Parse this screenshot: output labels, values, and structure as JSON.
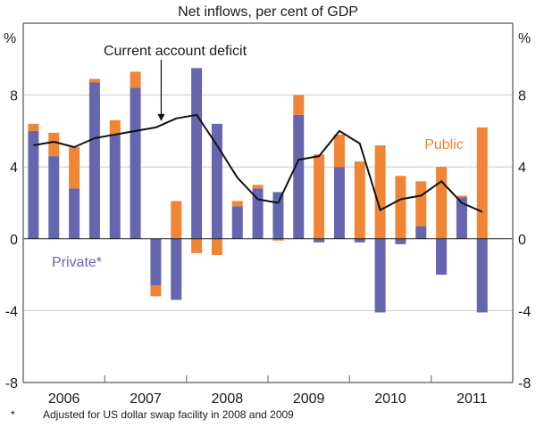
{
  "chart_data": {
    "type": "bar",
    "stacked": true,
    "title": "Net inflows, per cent of GDP",
    "ylabel_left": "%",
    "ylabel_right": "%",
    "ylim": [
      -8,
      12
    ],
    "yticks": [
      -8,
      -4,
      0,
      4,
      8
    ],
    "ytick_labels": [
      "-8",
      "-4",
      "0",
      "4",
      "8"
    ],
    "grid": true,
    "x_years": [
      "2006",
      "2007",
      "2008",
      "2009",
      "2010",
      "2011"
    ],
    "x_unit": "quarter",
    "x": [
      "2006Q1",
      "2006Q2",
      "2006Q3",
      "2006Q4",
      "2007Q1",
      "2007Q2",
      "2007Q3",
      "2007Q4",
      "2008Q1",
      "2008Q2",
      "2008Q3",
      "2008Q4",
      "2009Q1",
      "2009Q2",
      "2009Q3",
      "2009Q4",
      "2010Q1",
      "2010Q2",
      "2010Q3",
      "2010Q4",
      "2011Q1",
      "2011Q2",
      "2011Q3"
    ],
    "series": [
      {
        "name": "Private*",
        "kind": "bar",
        "color": "#6566ad",
        "values": [
          6.0,
          4.6,
          2.8,
          8.7,
          5.8,
          8.4,
          -2.6,
          -3.4,
          9.5,
          6.4,
          1.8,
          2.8,
          2.6,
          6.9,
          -0.2,
          4.0,
          -0.2,
          -4.1,
          -0.3,
          0.7,
          -2.0,
          2.3,
          -4.1
        ]
      },
      {
        "name": "Public",
        "kind": "bar",
        "color": "#f08535",
        "values": [
          0.4,
          1.3,
          2.3,
          0.2,
          0.8,
          0.9,
          -0.6,
          2.1,
          -0.8,
          -0.9,
          0.3,
          0.2,
          -0.1,
          1.1,
          4.7,
          1.8,
          4.3,
          5.2,
          3.5,
          2.5,
          4.0,
          0.1,
          6.2
        ]
      },
      {
        "name": "Current account deficit",
        "kind": "line",
        "color": "#111111",
        "values": [
          5.2,
          5.4,
          5.1,
          5.6,
          5.8,
          6.0,
          6.2,
          6.7,
          6.9,
          5.2,
          3.4,
          2.2,
          2.0,
          4.4,
          4.6,
          6.0,
          5.3,
          1.6,
          2.2,
          2.4,
          3.2,
          2.0,
          1.5
        ]
      }
    ],
    "annotations": [
      {
        "text": "Current account deficit",
        "points_to": "2007Q3",
        "arrow": true
      },
      {
        "text": "Public",
        "near": "2010Q4"
      },
      {
        "text": "Private*",
        "near": "2006Q2"
      }
    ],
    "footnote_marker": "*",
    "footnote": "Adjusted for US dollar swap facility in 2008 and 2009"
  }
}
